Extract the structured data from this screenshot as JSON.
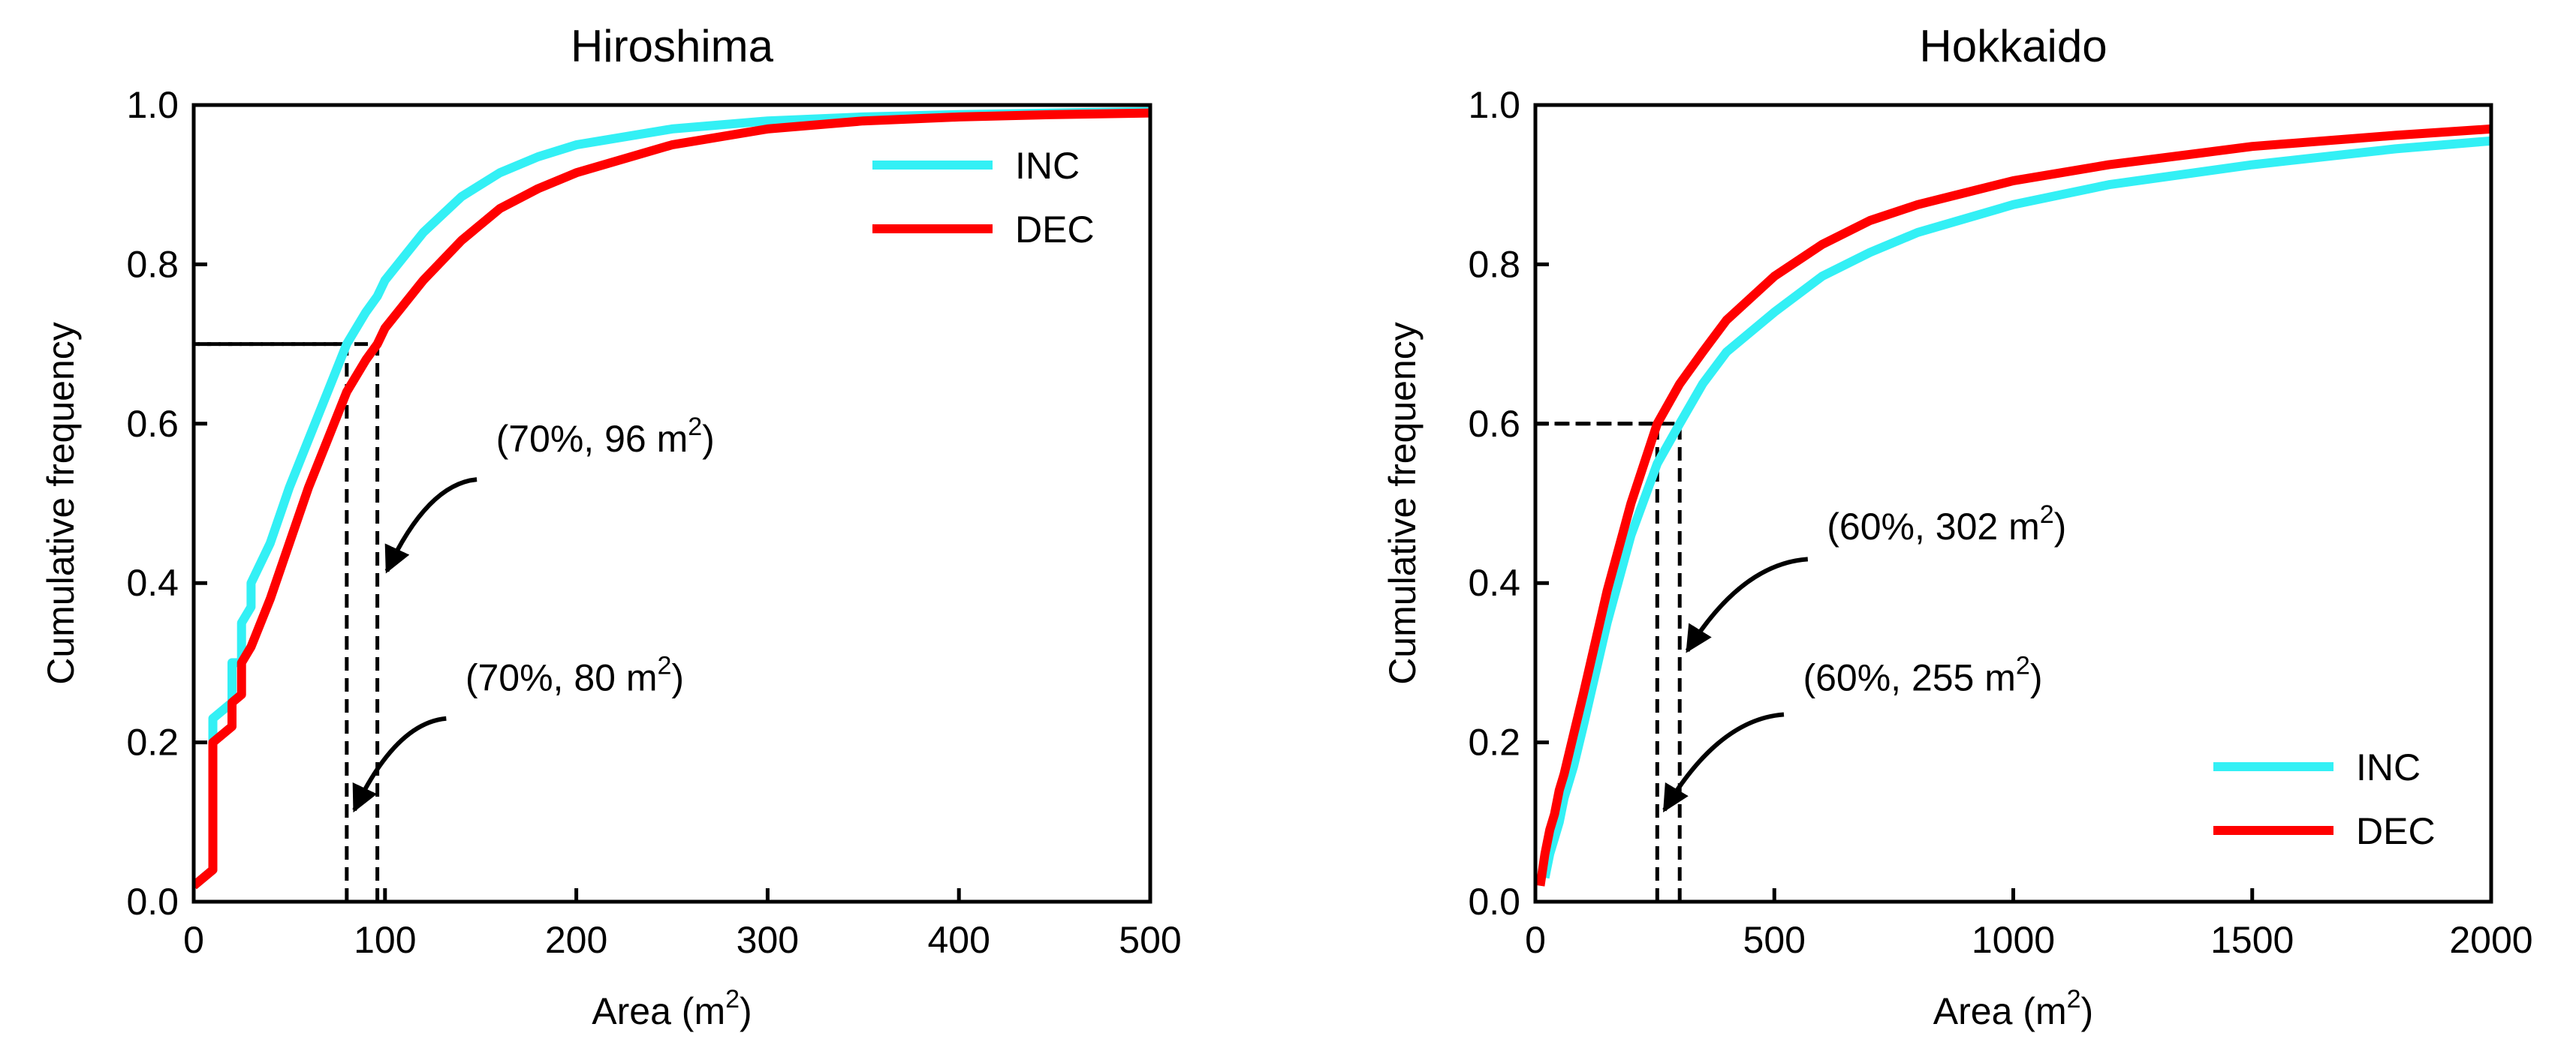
{
  "chart_data": [
    {
      "type": "line",
      "title": "Hiroshima",
      "xlabel": "Area (m",
      "xlabel_sup": "2",
      "xlabel_suffix": ")",
      "ylabel": "Cumulative frequency",
      "xlim": [
        0,
        500
      ],
      "ylim": [
        0,
        1.0
      ],
      "xticks": [
        0,
        100,
        200,
        300,
        400,
        500
      ],
      "xtick_labels": [
        "0",
        "100",
        "200",
        "300",
        "400",
        "500"
      ],
      "yticks": [
        0,
        0.2,
        0.4,
        0.6,
        0.8,
        1.0
      ],
      "ytick_labels": [
        "0.0",
        "0.2",
        "0.4",
        "0.6",
        "0.8",
        "1.0"
      ],
      "legend_position": "top-right",
      "series": [
        {
          "name": "INC",
          "color": "#33f0f5",
          "x": [
            0,
            10,
            10,
            20,
            20,
            25,
            25,
            30,
            30,
            40,
            50,
            60,
            70,
            80,
            90,
            96,
            100,
            110,
            120,
            140,
            160,
            180,
            200,
            250,
            300,
            350,
            400,
            450,
            500
          ],
          "y": [
            0.02,
            0.04,
            0.23,
            0.25,
            0.3,
            0.3,
            0.35,
            0.37,
            0.4,
            0.45,
            0.52,
            0.58,
            0.64,
            0.7,
            0.74,
            0.76,
            0.78,
            0.81,
            0.84,
            0.885,
            0.915,
            0.935,
            0.95,
            0.97,
            0.98,
            0.985,
            0.988,
            0.99,
            0.992
          ]
        },
        {
          "name": "DEC",
          "color": "#ff0000",
          "x": [
            0,
            10,
            10,
            20,
            20,
            25,
            25,
            30,
            40,
            50,
            60,
            70,
            80,
            90,
            96,
            100,
            120,
            140,
            160,
            180,
            200,
            250,
            300,
            350,
            400,
            450,
            500
          ],
          "y": [
            0.02,
            0.04,
            0.2,
            0.22,
            0.25,
            0.26,
            0.3,
            0.32,
            0.38,
            0.45,
            0.52,
            0.58,
            0.64,
            0.68,
            0.7,
            0.72,
            0.78,
            0.83,
            0.87,
            0.895,
            0.915,
            0.95,
            0.97,
            0.98,
            0.985,
            0.988,
            0.99
          ]
        }
      ],
      "reference_lines": [
        {
          "x": 80,
          "y": 0.7
        },
        {
          "x": 96,
          "y": 0.7
        }
      ],
      "annotations": [
        {
          "text": "(70%, 96 m",
          "sup": "2",
          "suffix": ")",
          "text_x": 158,
          "text_y": 0.565,
          "arrow_from": [
            148,
            0.53
          ],
          "arrow_to": [
            101,
            0.415
          ]
        },
        {
          "text": "(70%, 80 m",
          "sup": "2",
          "suffix": ")",
          "text_x": 142,
          "text_y": 0.265,
          "arrow_from": [
            132,
            0.23
          ],
          "arrow_to": [
            84,
            0.115
          ]
        }
      ]
    },
    {
      "type": "line",
      "title": "Hokkaido",
      "xlabel": "Area (m",
      "xlabel_sup": "2",
      "xlabel_suffix": ")",
      "ylabel": "Cumulative frequency",
      "xlim": [
        0,
        2000
      ],
      "ylim": [
        0,
        1.0
      ],
      "xticks": [
        0,
        500,
        1000,
        1500,
        2000
      ],
      "xtick_labels": [
        "0",
        "500",
        "1000",
        "1500",
        "2000"
      ],
      "yticks": [
        0,
        0.2,
        0.4,
        0.6,
        0.8,
        1.0
      ],
      "ytick_labels": [
        "0.0",
        "0.2",
        "0.4",
        "0.6",
        "0.8",
        "1.0"
      ],
      "legend_position": "bottom-right",
      "series": [
        {
          "name": "INC",
          "color": "#33f0f5",
          "x": [
            20,
            30,
            40,
            50,
            60,
            80,
            100,
            150,
            200,
            255,
            302,
            350,
            400,
            500,
            600,
            700,
            800,
            1000,
            1200,
            1500,
            1800,
            2000
          ],
          "y": [
            0.03,
            0.06,
            0.08,
            0.1,
            0.13,
            0.17,
            0.22,
            0.35,
            0.46,
            0.55,
            0.6,
            0.65,
            0.69,
            0.74,
            0.785,
            0.815,
            0.84,
            0.875,
            0.9,
            0.925,
            0.945,
            0.955
          ]
        },
        {
          "name": "DEC",
          "color": "#ff0000",
          "x": [
            10,
            20,
            30,
            40,
            50,
            60,
            80,
            100,
            150,
            200,
            255,
            302,
            350,
            400,
            500,
            600,
            700,
            800,
            1000,
            1200,
            1500,
            1800,
            2000
          ],
          "y": [
            0.02,
            0.06,
            0.09,
            0.11,
            0.14,
            0.16,
            0.21,
            0.26,
            0.39,
            0.5,
            0.6,
            0.65,
            0.69,
            0.73,
            0.785,
            0.825,
            0.855,
            0.875,
            0.905,
            0.925,
            0.948,
            0.962,
            0.97
          ]
        }
      ],
      "reference_lines": [
        {
          "x": 255,
          "y": 0.6
        },
        {
          "x": 302,
          "y": 0.6
        }
      ],
      "annotations": [
        {
          "text": "(60%, 302 m",
          "sup": "2",
          "suffix": ")",
          "text_x": 610,
          "text_y": 0.455,
          "arrow_from": [
            570,
            0.43
          ],
          "arrow_to": [
            318,
            0.315
          ]
        },
        {
          "text": "(60%, 255 m",
          "sup": "2",
          "suffix": ")",
          "text_x": 560,
          "text_y": 0.265,
          "arrow_from": [
            520,
            0.235
          ],
          "arrow_to": [
            270,
            0.115
          ]
        }
      ]
    }
  ]
}
